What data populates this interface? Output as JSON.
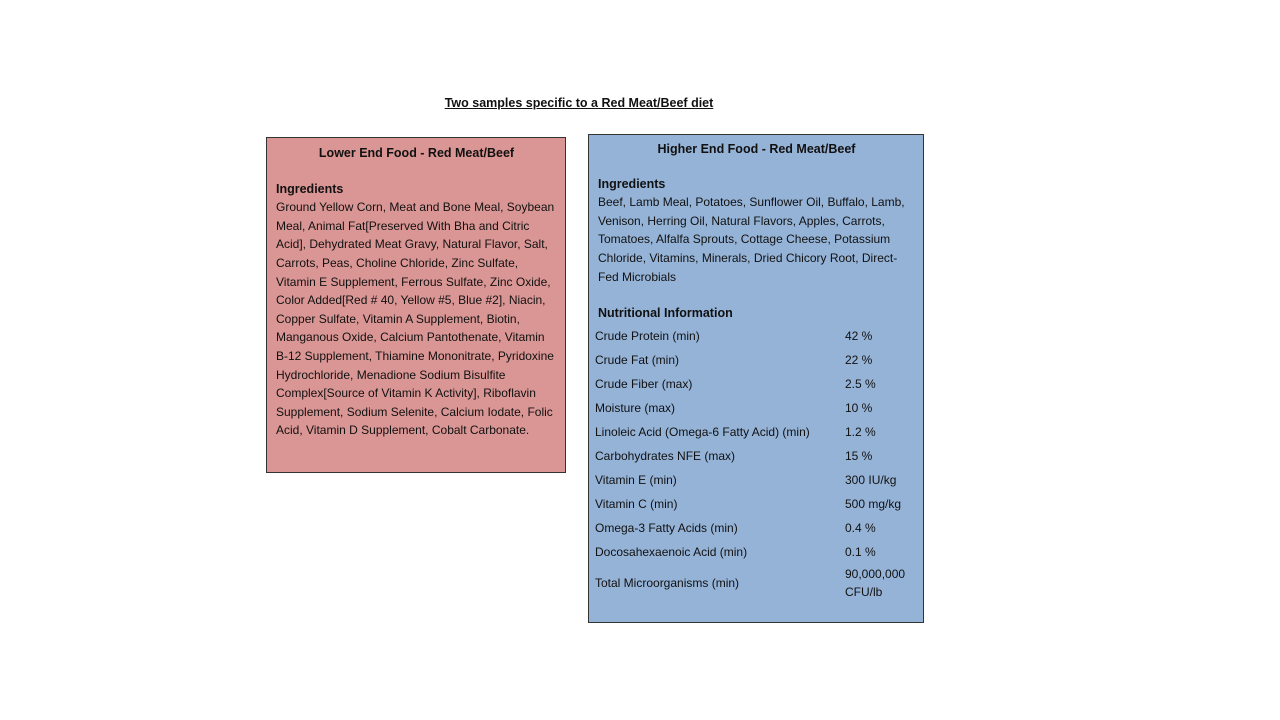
{
  "title": "Two samples specific to a Red Meat/Beef diet",
  "left_box": {
    "title": "Lower End Food - Red Meat/Beef",
    "ingredients_heading": "Ingredients",
    "ingredients": "Ground Yellow Corn, Meat and Bone Meal, Soybean Meal, Animal Fat[Preserved With Bha and Citric Acid], Dehydrated Meat Gravy, Natural Flavor, Salt, Carrots, Peas, Choline Chloride, Zinc Sulfate, Vitamin E Supplement, Ferrous Sulfate, Zinc Oxide, Color Added[Red # 40, Yellow #5, Blue #2], Niacin, Copper Sulfate, Vitamin A Supplement, Biotin, Manganous Oxide, Calcium Pantothenate, Vitamin B-12 Supplement, Thiamine Mononitrate, Pyridoxine Hydrochloride, Menadione Sodium Bisulfite Complex[Source of Vitamin K Activity], Riboflavin Supplement, Sodium Selenite, Calcium Iodate, Folic Acid, Vitamin D Supplement, Cobalt Carbonate."
  },
  "right_box": {
    "title": "Higher End Food - Red Meat/Beef",
    "ingredients_heading": "Ingredients",
    "ingredients": "Beef, Lamb Meal, Potatoes, Sunflower Oil, Buffalo, Lamb, Venison, Herring Oil, Natural Flavors, Apples, Carrots, Tomatoes, Alfalfa Sprouts, Cottage Cheese, Potassium Chloride, Vitamins, Minerals, Dried Chicory Root, Direct-Fed Microbials",
    "nutrition_heading": "Nutritional Information",
    "nutrition": [
      [
        "Crude Protein (min)",
        "42 %"
      ],
      [
        "Crude Fat (min)",
        "22 %"
      ],
      [
        "Crude Fiber (max)",
        "2.5 %"
      ],
      [
        "Moisture (max)",
        "10 %"
      ],
      [
        "Linoleic Acid (Omega-6 Fatty Acid) (min)",
        "1.2 %"
      ],
      [
        "Carbohydrates NFE (max)",
        "15 %"
      ],
      [
        "Vitamin E (min)",
        "300 IU/kg"
      ],
      [
        "Vitamin C (min)",
        "500 mg/kg"
      ],
      [
        "Omega-3 Fatty Acids (min)",
        "0.4 %"
      ],
      [
        "Docosahexaenoic Acid (min)",
        "0.1 %"
      ],
      [
        "Total Microorganisms (min)",
        "90,000,000 CFU/lb"
      ]
    ]
  }
}
